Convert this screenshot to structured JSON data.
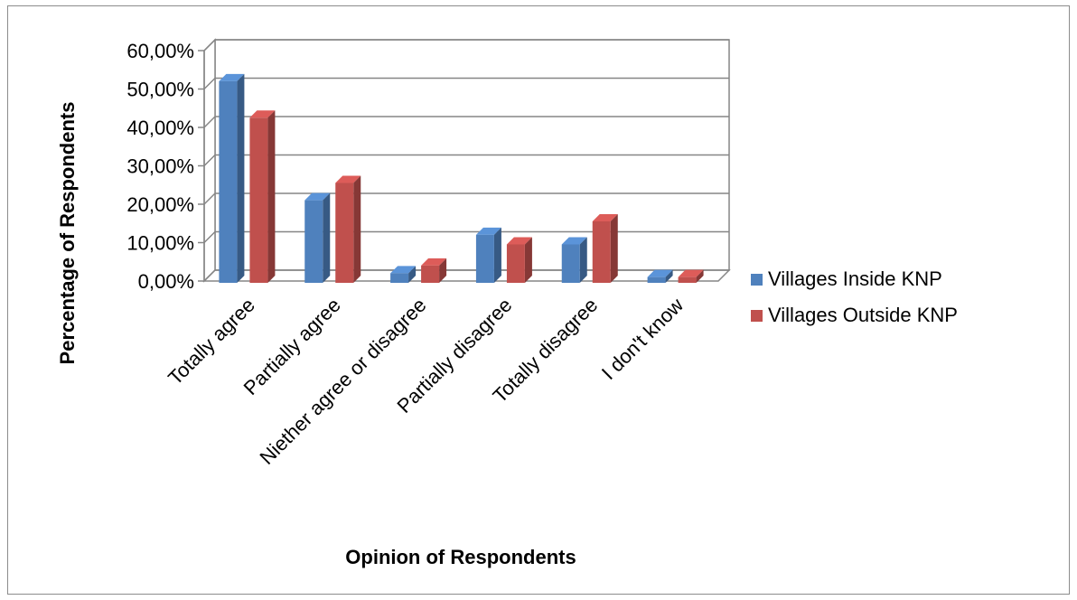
{
  "chart_data": {
    "type": "bar",
    "title": "",
    "xlabel": "Opinion of Respondents",
    "ylabel": "Percentage of Respondents",
    "categories": [
      "Totally agree",
      "Partially agree",
      "Niether agree or disagree",
      "Partially disagree",
      "Totally disagree",
      "I don't know"
    ],
    "series": [
      {
        "name": "Villages Inside KNP",
        "color": "#4f81bd",
        "values": [
          52.5,
          21.5,
          2.5,
          12.5,
          10.0,
          1.5
        ]
      },
      {
        "name": "Villages Outside KNP",
        "color": "#c0504d",
        "values": [
          43.0,
          26.0,
          4.5,
          10.0,
          16.0,
          1.5
        ]
      }
    ],
    "ylim": [
      0,
      60
    ],
    "yticks": [
      0,
      10,
      20,
      30,
      40,
      50,
      60
    ],
    "ytick_labels": [
      "0,00%",
      "10,00%",
      "20,00%",
      "30,00%",
      "40,00%",
      "50,00%",
      "60,00%"
    ],
    "grid": true,
    "style": "3d-clustered-column",
    "legend": "right"
  }
}
